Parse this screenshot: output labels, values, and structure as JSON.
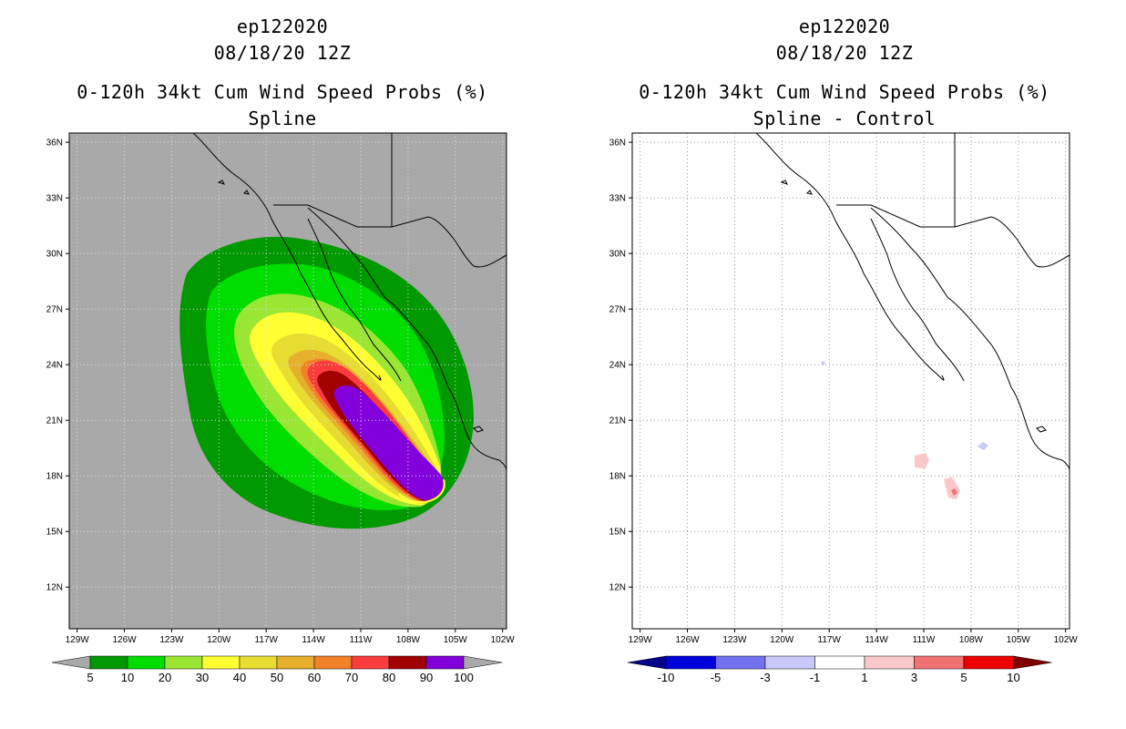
{
  "left_panel": {
    "title_lines": [
      "ep122020",
      "08/18/20 12Z",
      "0-120h 34kt Cum Wind Speed Probs (%)",
      "Spline"
    ],
    "background_color": "#a9a9a9",
    "colorbar": {
      "labels": [
        "5",
        "10",
        "20",
        "30",
        "40",
        "50",
        "60",
        "70",
        "80",
        "90",
        "100"
      ],
      "colors": [
        "#009900",
        "#00dd00",
        "#99e633",
        "#ffff33",
        "#e6dc32",
        "#e6af2d",
        "#f08228",
        "#fa3c3c",
        "#a00000",
        "#8200dc"
      ],
      "under_color": "#a9a9a9",
      "over_color": "#a9a9a9"
    }
  },
  "right_panel": {
    "title_lines": [
      "ep122020",
      "08/18/20 12Z",
      "0-120h 34kt Cum Wind Speed Probs (%)",
      "Spline - Control"
    ],
    "background_color": "#ffffff",
    "colorbar": {
      "labels": [
        "-10",
        "-5",
        "-3",
        "-1",
        "1",
        "3",
        "5",
        "10"
      ],
      "colors": [
        "#0000dc",
        "#7272f0",
        "#c8c8fa",
        "#ffffff",
        "#fac8c8",
        "#f07272",
        "#ee0000"
      ],
      "under_color": "#00008c",
      "over_color": "#800000"
    }
  },
  "axes": {
    "lon_labels": [
      "129W",
      "126W",
      "123W",
      "120W",
      "117W",
      "114W",
      "111W",
      "108W",
      "105W",
      "102W"
    ],
    "lat_labels": [
      "36N",
      "33N",
      "30N",
      "27N",
      "24N",
      "21N",
      "18N",
      "15N",
      "12N"
    ]
  },
  "map_data": {
    "lon_range": [
      -129.5,
      -101.75
    ],
    "lat_range": [
      9.75,
      36.5
    ],
    "lon_ticks": [
      -129,
      -126,
      -123,
      -120,
      -117,
      -114,
      -111,
      -108,
      -105,
      -102
    ],
    "lat_ticks": [
      36,
      33,
      30,
      27,
      24,
      21,
      18,
      15,
      12
    ]
  }
}
